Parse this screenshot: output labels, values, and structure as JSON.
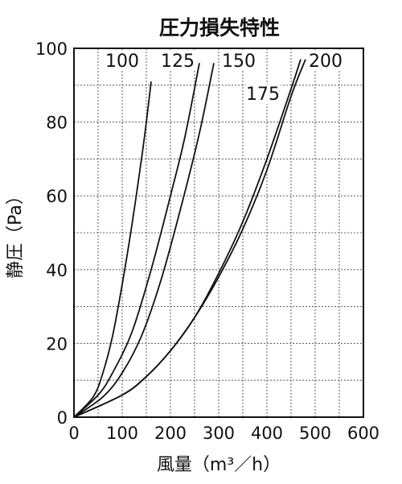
{
  "chart_data": {
    "type": "line",
    "title": "圧力損失特性",
    "xlabel": "風量（m³／h）",
    "ylabel": "静圧（Pa）",
    "xlim": [
      0,
      600
    ],
    "ylim": [
      0,
      100
    ],
    "xticks": [
      "0",
      "100",
      "200",
      "300",
      "400",
      "500",
      "600"
    ],
    "yticks": [
      "0",
      "20",
      "40",
      "60",
      "80",
      "100"
    ],
    "grid": true,
    "series": [
      {
        "name": "100",
        "x": [
          0,
          40,
          60,
          80,
          100,
          120,
          140,
          150,
          160
        ],
        "y": [
          0,
          5.5,
          12,
          22,
          36,
          52,
          70,
          80,
          91
        ]
      },
      {
        "name": "125",
        "x": [
          0,
          50,
          80,
          120,
          160,
          200,
          230,
          260
        ],
        "y": [
          0,
          6,
          12,
          23,
          40,
          60,
          76,
          96
        ]
      },
      {
        "name": "150",
        "x": [
          0,
          60,
          100,
          140,
          180,
          220,
          260,
          290
        ],
        "y": [
          0,
          5.5,
          12,
          22,
          37,
          56,
          77,
          96
        ]
      },
      {
        "name": "175",
        "x": [
          0,
          100,
          150,
          200,
          250,
          300,
          350,
          400,
          450,
          470
        ],
        "y": [
          0,
          6,
          11,
          18,
          27,
          39,
          53,
          70,
          89,
          97
        ]
      },
      {
        "name": "200",
        "x": [
          0,
          100,
          150,
          200,
          250,
          300,
          350,
          400,
          450,
          480
        ],
        "y": [
          0,
          6,
          11,
          18,
          27,
          38,
          51,
          67,
          87,
          97
        ]
      }
    ]
  }
}
